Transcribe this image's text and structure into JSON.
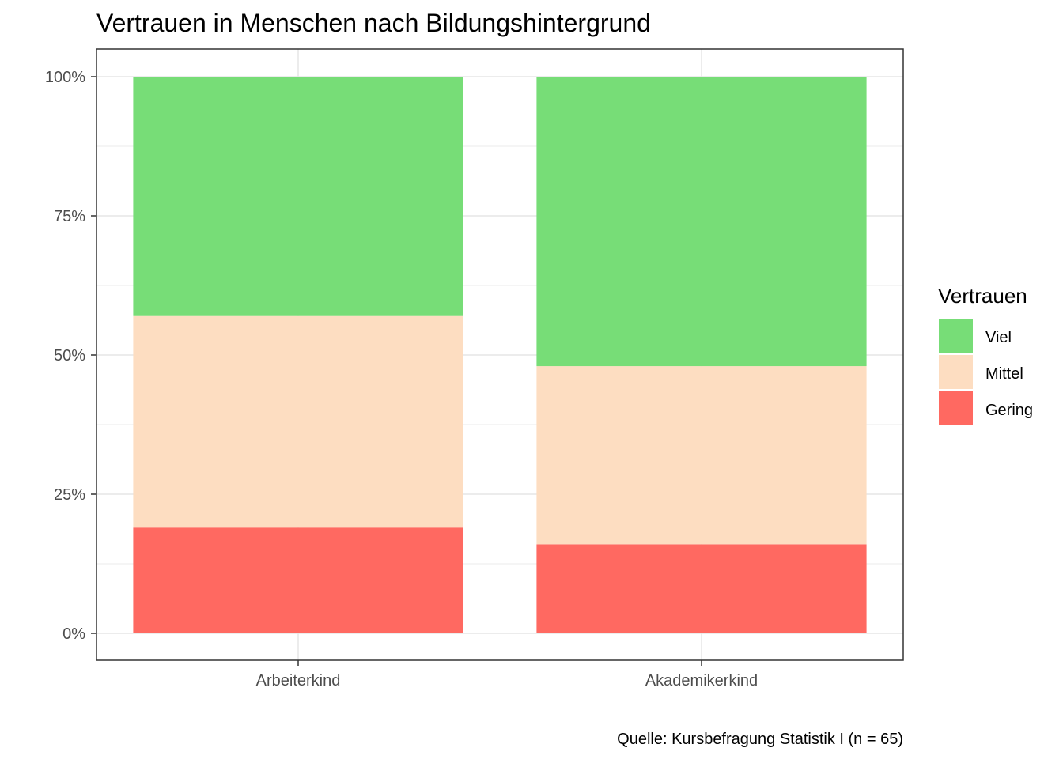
{
  "chart_data": {
    "type": "bar",
    "stacked": true,
    "percent": true,
    "title": "Vertrauen in Menschen nach Bildungshintergrund",
    "xlabel": "",
    "ylabel": "",
    "caption": "Quelle: Kursbefragung Statistik I (n = 65)",
    "categories": [
      "Arbeiterkind",
      "Akademikerkind"
    ],
    "series": [
      {
        "name": "Gering",
        "color": "#FF6961",
        "values": [
          19,
          16
        ]
      },
      {
        "name": "Mittel",
        "color": "#FDDDC1",
        "values": [
          38,
          32
        ]
      },
      {
        "name": "Viel",
        "color": "#77DD77",
        "values": [
          43,
          52
        ]
      }
    ],
    "ylim": [
      0,
      100
    ],
    "yticks": [
      {
        "value": 0,
        "label": "0%"
      },
      {
        "value": 25,
        "label": "25%"
      },
      {
        "value": 50,
        "label": "50%"
      },
      {
        "value": 75,
        "label": "75%"
      },
      {
        "value": 100,
        "label": "100%"
      }
    ],
    "grid": true,
    "legend": {
      "title": "Vertrauen",
      "position": "right",
      "order": [
        "Viel",
        "Mittel",
        "Gering"
      ]
    }
  }
}
